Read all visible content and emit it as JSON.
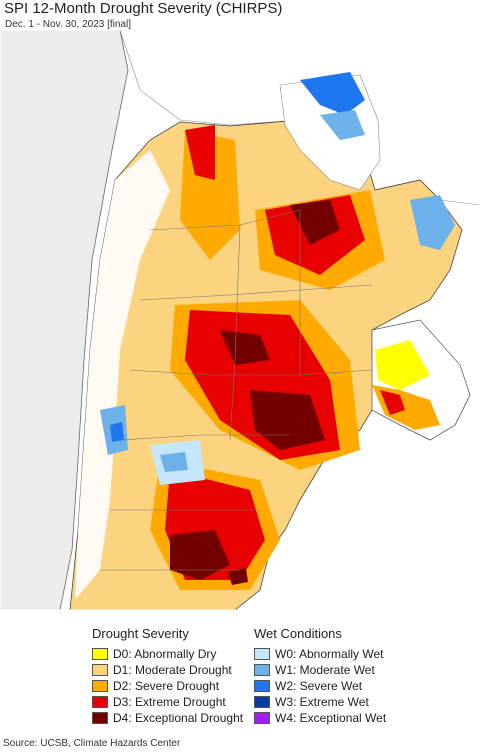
{
  "title": "SPI 12-Month Drought Severity (CHIRPS)",
  "subtitle": "Dec. 1 - Nov. 30, 2023 [final]",
  "legend": {
    "drought_title": "Drought Severity",
    "wet_title": "Wet Conditions",
    "drought": [
      {
        "label": "D0: Abnormally Dry",
        "color": "#ffff00"
      },
      {
        "label": "D1: Moderate Drought",
        "color": "#fcd37f"
      },
      {
        "label": "D2: Severe Drought",
        "color": "#ffaa00"
      },
      {
        "label": "D3: Extreme Drought",
        "color": "#e60000"
      },
      {
        "label": "D4: Exceptional Drought",
        "color": "#730000"
      }
    ],
    "wet": [
      {
        "label": "W0: Abnormally Wet",
        "color": "#c6e6fb"
      },
      {
        "label": "W1: Moderate Wet",
        "color": "#6db1ea"
      },
      {
        "label": "W2: Severe Wet",
        "color": "#1f77f0"
      },
      {
        "label": "W3: Extreme Wet",
        "color": "#0a3aa8"
      },
      {
        "label": "W4: Exceptional Wet",
        "color": "#a020f0"
      }
    ]
  },
  "source": "Source: UCSB, Climate Hazards Center"
}
